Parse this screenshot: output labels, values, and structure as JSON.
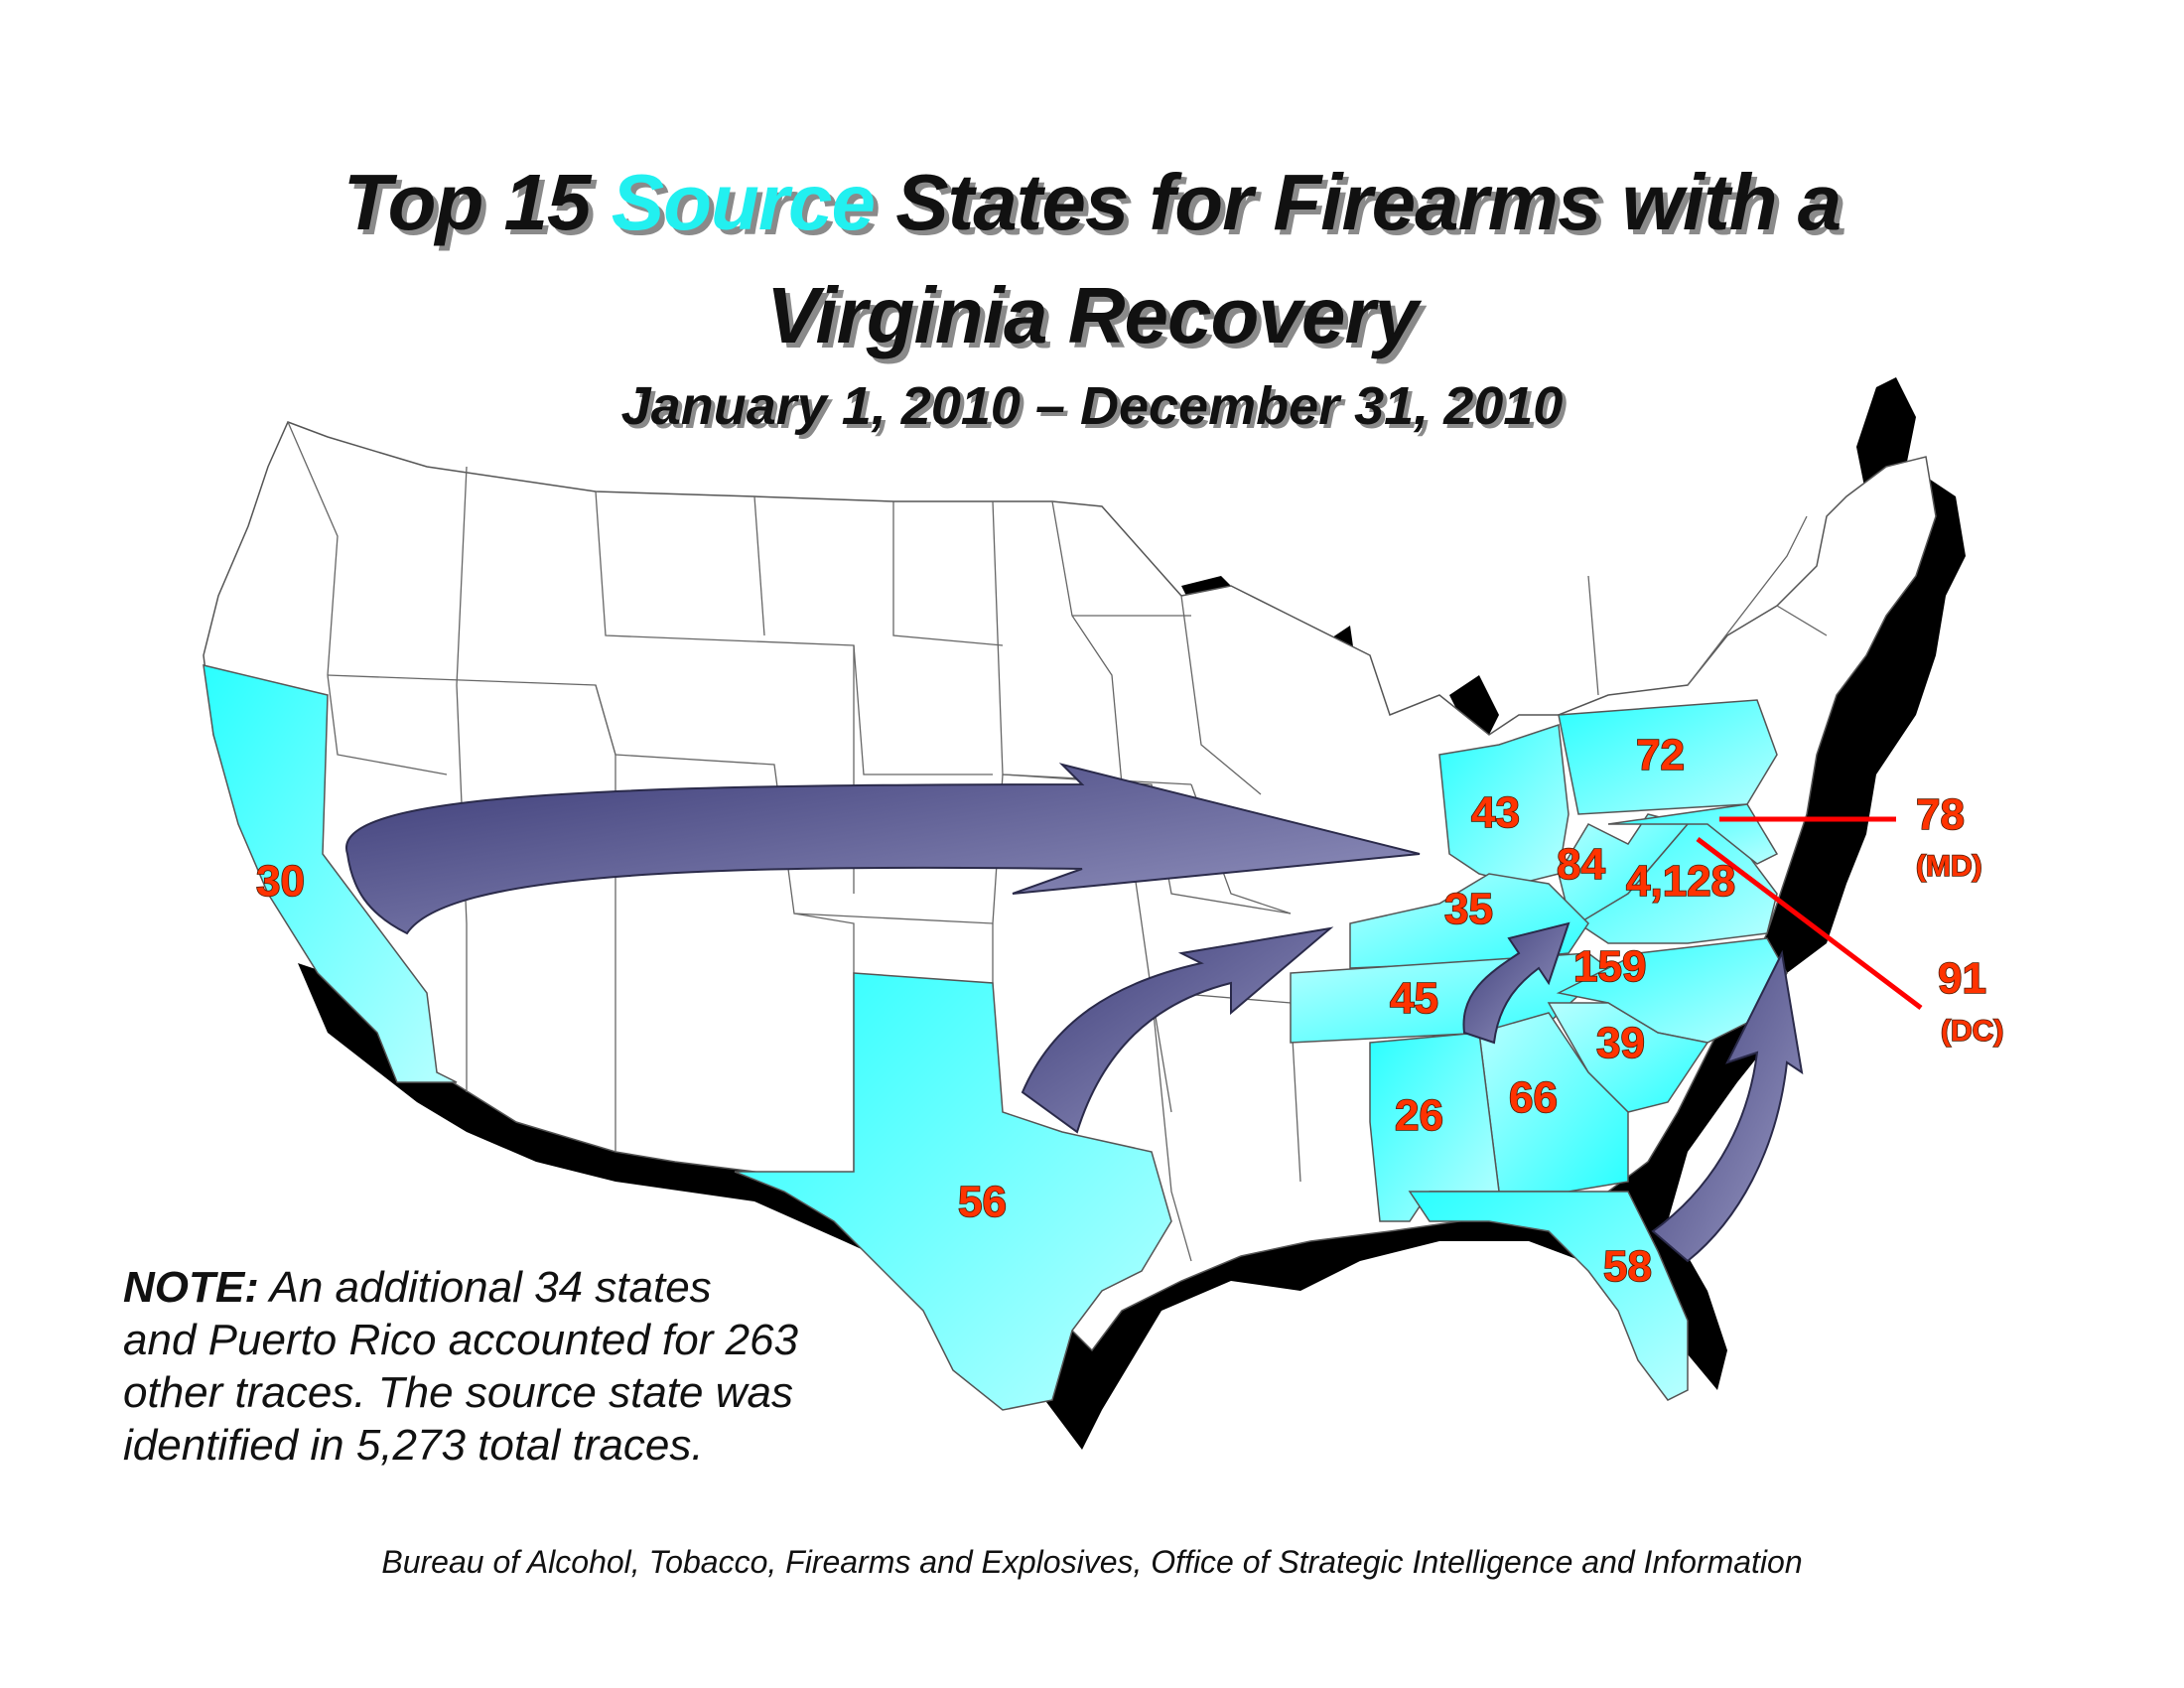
{
  "title": {
    "line1_pre": "Top 15 ",
    "line1_highlight": "Source",
    "line1_post": " States for Firearms with a",
    "line2": "Virginia Recovery",
    "date_range": "January 1, 2010 – December 31, 2010"
  },
  "colors": {
    "highlight_state": "#33ffff",
    "state_outline": "#555555",
    "shadow": "#000000",
    "arrow": "#6a6a9a",
    "label": "#ff3300",
    "leader_line": "#ff0000",
    "title_highlight": "#22f0f0"
  },
  "states": [
    {
      "state": "California",
      "count": "30"
    },
    {
      "state": "Texas",
      "count": "56"
    },
    {
      "state": "Ohio",
      "count": "43"
    },
    {
      "state": "Pennsylvania",
      "count": "72"
    },
    {
      "state": "West Virginia",
      "count": "84"
    },
    {
      "state": "Virginia",
      "count": "4,128"
    },
    {
      "state": "Kentucky",
      "count": "35"
    },
    {
      "state": "Tennessee",
      "count": "45"
    },
    {
      "state": "North Carolina",
      "count": "159"
    },
    {
      "state": "South Carolina",
      "count": "39"
    },
    {
      "state": "Georgia",
      "count": "66"
    },
    {
      "state": "Alabama",
      "count": "26"
    },
    {
      "state": "Florida",
      "count": "58"
    }
  ],
  "callouts": [
    {
      "count": "78",
      "abbr": "(MD)"
    },
    {
      "count": "91",
      "abbr": "(DC)"
    }
  ],
  "note": {
    "bold": "NOTE:",
    "line1": "  An additional 34 states",
    "line2": "and Puerto Rico accounted for 263",
    "line3": "other traces.  The source state was",
    "line4": "identified in 5,273 total traces."
  },
  "source": "Bureau of Alcohol, Tobacco, Firearms and Explosives, Office of Strategic Intelligence and Information"
}
